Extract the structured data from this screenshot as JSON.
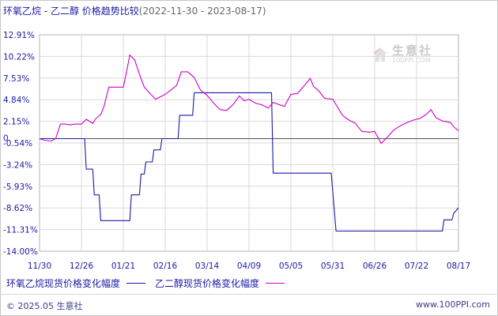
{
  "title": {
    "main": "环氧乙烷 - 乙二醇 价格趋势比较",
    "range": "(2022-11-30 - 2023-08-17)"
  },
  "watermark": {
    "main": "生意社",
    "sub": "100PPI.COM"
  },
  "legend": {
    "series1_label": "环氧乙烷现货价格变化幅度",
    "series2_label": "乙二醇现货价格变化幅度"
  },
  "footer": {
    "left": "© 2025.05 生意社",
    "right": "www.100PPI.com"
  },
  "colors": {
    "series1": "#1a1aa6",
    "series2": "#cc00cc",
    "grid": "#d9d9d9",
    "zero_line": "#555555",
    "axis_text": "#1a1aa6"
  },
  "chart_data": {
    "type": "line",
    "y_ticks": [
      "12.91%",
      "10.22%",
      "7.53%",
      "4.84%",
      "2.15%",
      "-0.54%",
      "-3.24%",
      "-5.93%",
      "-8.62%",
      "-11.31%",
      "-14.00%"
    ],
    "ylim": [
      -14.0,
      12.91
    ],
    "zero_label": "0",
    "x_ticks": [
      "11/30",
      "12/26",
      "01/21",
      "02/16",
      "03/14",
      "04/09",
      "05/05",
      "05/31",
      "06/26",
      "07/22",
      "08/17"
    ],
    "xlim": [
      "2022-11-30",
      "2023-08-17"
    ],
    "grid": true,
    "series": [
      {
        "name": "环氧乙烷现货价格变化幅度",
        "color": "#1a1aa6",
        "points": [
          [
            "2022-11-30",
            0
          ],
          [
            "2022-12-28",
            0
          ],
          [
            "2022-12-29",
            -3.8
          ],
          [
            "2023-01-02",
            -3.8
          ],
          [
            "2023-01-03",
            -7.0
          ],
          [
            "2023-01-06",
            -7.0
          ],
          [
            "2023-01-07",
            -10.2
          ],
          [
            "2023-01-25",
            -10.2
          ],
          [
            "2023-01-26",
            -7.0
          ],
          [
            "2023-01-31",
            -7.0
          ],
          [
            "2023-02-01",
            -4.4
          ],
          [
            "2023-02-03",
            -4.4
          ],
          [
            "2023-02-04",
            -2.9
          ],
          [
            "2023-02-08",
            -2.9
          ],
          [
            "2023-02-09",
            -1.4
          ],
          [
            "2023-02-13",
            -1.4
          ],
          [
            "2023-02-14",
            0
          ],
          [
            "2023-02-24",
            0
          ],
          [
            "2023-02-25",
            2.9
          ],
          [
            "2023-03-05",
            2.9
          ],
          [
            "2023-03-06",
            5.7
          ],
          [
            "2023-04-23",
            5.7
          ],
          [
            "2023-04-24",
            -4.3
          ],
          [
            "2023-05-30",
            -4.3
          ],
          [
            "2023-06-02",
            -11.5
          ],
          [
            "2023-08-07",
            -11.5
          ],
          [
            "2023-08-08",
            -10.1
          ],
          [
            "2023-08-13",
            -10.1
          ],
          [
            "2023-08-14",
            -9.3
          ],
          [
            "2023-08-17",
            -8.6
          ]
        ]
      },
      {
        "name": "乙二醇现货价格变化幅度",
        "color": "#cc00cc",
        "points": [
          [
            "2022-11-30",
            0
          ],
          [
            "2022-12-03",
            -0.2
          ],
          [
            "2022-12-07",
            -0.3
          ],
          [
            "2022-12-10",
            0
          ],
          [
            "2022-12-13",
            1.8
          ],
          [
            "2022-12-16",
            1.8
          ],
          [
            "2022-12-19",
            1.7
          ],
          [
            "2022-12-22",
            1.8
          ],
          [
            "2022-12-26",
            1.8
          ],
          [
            "2022-12-29",
            2.4
          ],
          [
            "2023-01-02",
            1.9
          ],
          [
            "2023-01-04",
            2.5
          ],
          [
            "2023-01-07",
            3.0
          ],
          [
            "2023-01-09",
            4.0
          ],
          [
            "2023-01-12",
            6.4
          ],
          [
            "2023-01-16",
            6.4
          ],
          [
            "2023-01-19",
            6.4
          ],
          [
            "2023-01-21",
            6.4
          ],
          [
            "2023-01-23",
            8.3
          ],
          [
            "2023-01-25",
            10.4
          ],
          [
            "2023-01-28",
            9.8
          ],
          [
            "2023-01-31",
            8.0
          ],
          [
            "2023-02-03",
            6.4
          ],
          [
            "2023-02-07",
            5.5
          ],
          [
            "2023-02-10",
            4.9
          ],
          [
            "2023-02-13",
            5.2
          ],
          [
            "2023-02-16",
            5.5
          ],
          [
            "2023-02-20",
            6.1
          ],
          [
            "2023-02-23",
            6.6
          ],
          [
            "2023-02-26",
            8.3
          ],
          [
            "2023-03-02",
            8.3
          ],
          [
            "2023-03-06",
            7.6
          ],
          [
            "2023-03-10",
            6.0
          ],
          [
            "2023-03-14",
            5.4
          ],
          [
            "2023-03-18",
            4.4
          ],
          [
            "2023-03-22",
            3.6
          ],
          [
            "2023-03-26",
            3.5
          ],
          [
            "2023-03-30",
            4.2
          ],
          [
            "2023-04-03",
            5.3
          ],
          [
            "2023-04-06",
            4.7
          ],
          [
            "2023-04-09",
            4.9
          ],
          [
            "2023-04-13",
            4.4
          ],
          [
            "2023-04-17",
            4.2
          ],
          [
            "2023-04-21",
            3.8
          ],
          [
            "2023-04-24",
            4.5
          ],
          [
            "2023-04-28",
            4.2
          ],
          [
            "2023-05-01",
            4.0
          ],
          [
            "2023-05-05",
            5.5
          ],
          [
            "2023-05-09",
            5.6
          ],
          [
            "2023-05-13",
            6.5
          ],
          [
            "2023-05-17",
            7.5
          ],
          [
            "2023-05-19",
            6.5
          ],
          [
            "2023-05-22",
            6.0
          ],
          [
            "2023-05-26",
            5.0
          ],
          [
            "2023-05-31",
            4.9
          ],
          [
            "2023-06-03",
            3.9
          ],
          [
            "2023-06-06",
            2.9
          ],
          [
            "2023-06-10",
            2.3
          ],
          [
            "2023-06-14",
            1.9
          ],
          [
            "2023-06-18",
            0.9
          ],
          [
            "2023-06-23",
            0.8
          ],
          [
            "2023-06-26",
            0.9
          ],
          [
            "2023-06-30",
            -0.6
          ],
          [
            "2023-07-04",
            0.2
          ],
          [
            "2023-07-08",
            1.1
          ],
          [
            "2023-07-12",
            1.6
          ],
          [
            "2023-07-16",
            2.0
          ],
          [
            "2023-07-20",
            2.3
          ],
          [
            "2023-07-24",
            2.5
          ],
          [
            "2023-07-28",
            3.0
          ],
          [
            "2023-07-31",
            3.6
          ],
          [
            "2023-08-03",
            2.6
          ],
          [
            "2023-08-07",
            2.2
          ],
          [
            "2023-08-12",
            2.0
          ],
          [
            "2023-08-15",
            1.3
          ],
          [
            "2023-08-17",
            1.0
          ]
        ]
      }
    ]
  }
}
